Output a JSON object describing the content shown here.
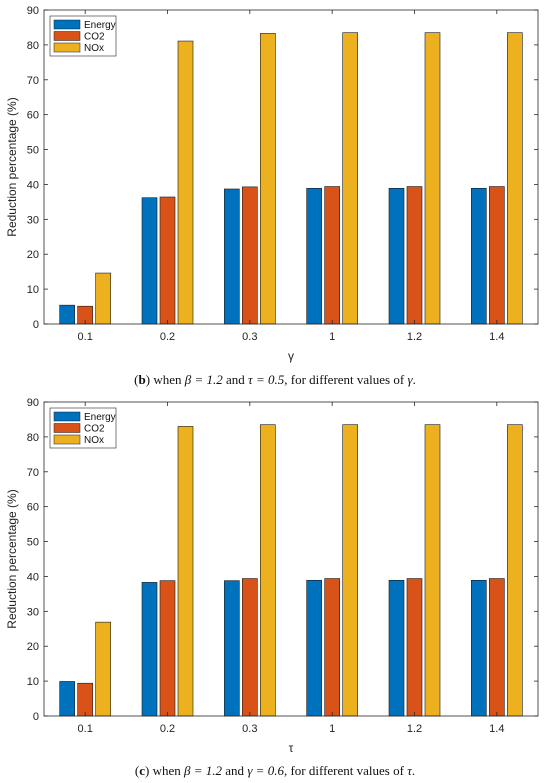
{
  "colors": {
    "energy": "#0072BD",
    "co2": "#D95319",
    "nox": "#EDB120",
    "axis": "#262626"
  },
  "chart_data": [
    {
      "type": "bar",
      "categories": [
        "0.1",
        "0.2",
        "0.3",
        "1",
        "1.2",
        "1.4"
      ],
      "series": [
        {
          "name": "Energy",
          "values": [
            5.4,
            36.2,
            38.7,
            38.9,
            38.9,
            38.9
          ]
        },
        {
          "name": "CO2",
          "values": [
            5.1,
            36.4,
            39.3,
            39.4,
            39.4,
            39.4
          ]
        },
        {
          "name": "NOx",
          "values": [
            14.6,
            81.1,
            83.3,
            83.5,
            83.5,
            83.5
          ]
        }
      ],
      "xlabel": "γ",
      "ylabel": "Reduction percentage (%)",
      "ylim": [
        0,
        90
      ],
      "yticks": [
        "0",
        "10",
        "20",
        "30",
        "40",
        "50",
        "60",
        "70",
        "80",
        "90"
      ],
      "legend_position": "top-left",
      "grid": false
    },
    {
      "type": "bar",
      "categories": [
        "0.1",
        "0.2",
        "0.3",
        "1",
        "1.2",
        "1.4"
      ],
      "series": [
        {
          "name": "Energy",
          "values": [
            9.9,
            38.3,
            38.8,
            38.9,
            38.9,
            38.9
          ]
        },
        {
          "name": "CO2",
          "values": [
            9.4,
            38.8,
            39.4,
            39.4,
            39.4,
            39.4
          ]
        },
        {
          "name": "NOx",
          "values": [
            26.9,
            83.0,
            83.5,
            83.5,
            83.5,
            83.5
          ]
        }
      ],
      "xlabel": "τ",
      "ylabel": "Reduction percentage (%)",
      "ylim": [
        0,
        90
      ],
      "yticks": [
        "0",
        "10",
        "20",
        "30",
        "40",
        "50",
        "60",
        "70",
        "80",
        "90"
      ],
      "legend_position": "top-left",
      "grid": false
    }
  ],
  "captions": {
    "b": {
      "tag": "b",
      "text_before": " when ",
      "beta": "β = 1.2",
      "and1": " and ",
      "param": "τ = 0.5",
      "text_after": ", for different values of ",
      "var": "γ",
      "end": "."
    },
    "c": {
      "tag": "c",
      "text_before": " when ",
      "beta": "β = 1.2",
      "and1": " and ",
      "param": "γ = 0.6",
      "text_after": ", for different values of ",
      "var": "τ",
      "end": "."
    }
  }
}
